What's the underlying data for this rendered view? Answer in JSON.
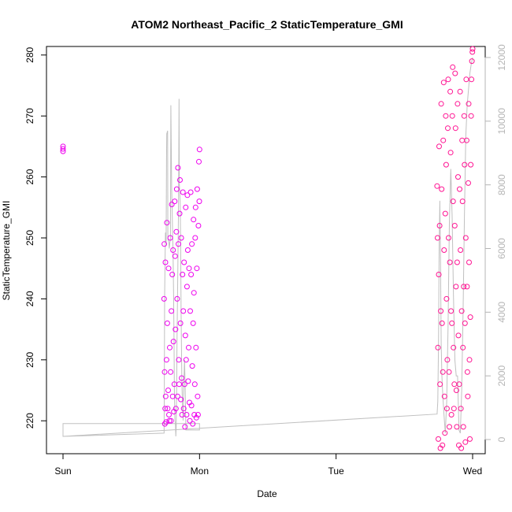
{
  "chart_data": {
    "type": "scatter",
    "title": "ATOM2 Northeast_Pacific_2 StaticTemperature_GMI",
    "xlabel": "Date",
    "ylabel": "StaticTemperature_GMI",
    "x_ticks": [
      "Sun",
      "Mon",
      "Tue",
      "Wed"
    ],
    "x_tick_values_days": [
      0,
      1,
      2,
      3
    ],
    "xlim_days": [
      0,
      3
    ],
    "y_ticks": [
      220,
      230,
      240,
      250,
      260,
      270,
      280
    ],
    "ylim": [
      214.6,
      281.4
    ],
    "y2_ticks": [
      "0",
      "2000",
      "4000",
      "6000",
      "8000",
      "10000",
      "12000"
    ],
    "y2_tick_values": [
      0,
      2000,
      4000,
      6000,
      8000,
      10000,
      12000
    ],
    "y2lim": [
      0,
      12000
    ],
    "grid": false,
    "legend": "none",
    "colors": {
      "temperature_early": "#ee00ee",
      "temperature_late": "#ff1493",
      "altitude_line": "#c0c0c0",
      "axis": "#000000",
      "right_axis": "#b5b5b5"
    },
    "series": [
      {
        "marker": "open-circle",
        "segments": [
          {
            "color": "#ee00ee",
            "x": [
              0.0,
              0.0,
              0.0
            ],
            "y": [
              264.2,
              264.6,
              265.0
            ]
          },
          {
            "color": "#ee00ee",
            "x": [
              0.74,
              0.742,
              0.744,
              0.746,
              0.748,
              0.75,
              0.752,
              0.755,
              0.758,
              0.761,
              0.764,
              0.767,
              0.77,
              0.773,
              0.776,
              0.779,
              0.782,
              0.785,
              0.788,
              0.791,
              0.794,
              0.797,
              0.8,
              0.803,
              0.806,
              0.809,
              0.812,
              0.815,
              0.818,
              0.821,
              0.824,
              0.827,
              0.83,
              0.833,
              0.836,
              0.839,
              0.842,
              0.845,
              0.848,
              0.851,
              0.854,
              0.857,
              0.86,
              0.863,
              0.866,
              0.869,
              0.872,
              0.875,
              0.878,
              0.881,
              0.884,
              0.887,
              0.89,
              0.893,
              0.896,
              0.899,
              0.902,
              0.905,
              0.908,
              0.911,
              0.914,
              0.917,
              0.92,
              0.923,
              0.926,
              0.929,
              0.932,
              0.935,
              0.938,
              0.941,
              0.944,
              0.947,
              0.95,
              0.953,
              0.956,
              0.959,
              0.962,
              0.965,
              0.968,
              0.971,
              0.974,
              0.977,
              0.98,
              0.983,
              0.986,
              0.989,
              0.992,
              0.995,
              0.998,
              1.0
            ],
            "y": [
              240.0,
              249.0,
              228.0,
              219.5,
              222.0,
              246.0,
              224.0,
              219.8,
              230.0,
              252.5,
              236.0,
              222.0,
              225.0,
              245.0,
              221.0,
              220.0,
              232.0,
              250.0,
              228.0,
              220.0,
              238.0,
              255.5,
              244.0,
              224.0,
              248.0,
              233.0,
              221.5,
              226.0,
              256.0,
              247.0,
              235.0,
              222.0,
              251.0,
              258.0,
              240.0,
              224.0,
              261.5,
              249.0,
              230.0,
              226.0,
              254.0,
              259.5,
              236.0,
              223.5,
              250.0,
              227.0,
              221.0,
              244.0,
              257.5,
              238.0,
              222.0,
              246.0,
              226.0,
              219.0,
              234.0,
              255.0,
              230.0,
              221.0,
              242.0,
              257.0,
              248.0,
              226.5,
              232.0,
              245.0,
              223.0,
              220.0,
              238.0,
              257.5,
              244.0,
              222.5,
              249.0,
              229.0,
              219.5,
              236.0,
              253.0,
              241.0,
              221.0,
              226.0,
              250.0,
              255.0,
              232.0,
              220.5,
              245.0,
              258.0,
              224.0,
              221.0,
              252.0,
              262.5,
              256.0,
              264.5
            ]
          },
          {
            "color": "#ff1493",
            "x": [
              2.74,
              2.743,
              2.746,
              2.749,
              2.752,
              2.755,
              2.758,
              2.761,
              2.764,
              2.767,
              2.77,
              2.773,
              2.776,
              2.779,
              2.782,
              2.785,
              2.788,
              2.791,
              2.794,
              2.797,
              2.8,
              2.803,
              2.806,
              2.809,
              2.812,
              2.815,
              2.818,
              2.821,
              2.824,
              2.827,
              2.83,
              2.833,
              2.836,
              2.839,
              2.842,
              2.845,
              2.848,
              2.851,
              2.854,
              2.857,
              2.86,
              2.863,
              2.866,
              2.869,
              2.872,
              2.875,
              2.878,
              2.881,
              2.884,
              2.887,
              2.89,
              2.893,
              2.896,
              2.899,
              2.902,
              2.905,
              2.908,
              2.911,
              2.914,
              2.917,
              2.92,
              2.923,
              2.926,
              2.929,
              2.932,
              2.935,
              2.938,
              2.941,
              2.944,
              2.947,
              2.95,
              2.953,
              2.956,
              2.959,
              2.962,
              2.965,
              2.968,
              2.971,
              2.974,
              2.977,
              2.98,
              2.983,
              2.986,
              2.989,
              2.992,
              2.995,
              2.998,
              3.0
            ],
            "y": [
              258.5,
              250.0,
              232.0,
              217.0,
              244.0,
              265.0,
              252.0,
              226.0,
              215.5,
              238.0,
              272.0,
              258.0,
              236.0,
              216.0,
              228.0,
              266.0,
              275.5,
              248.0,
              224.0,
              218.0,
              254.0,
              270.0,
              262.0,
              240.0,
              222.0,
              230.0,
              268.0,
              276.0,
              250.0,
              228.0,
              219.0,
              246.0,
              274.0,
              264.0,
              238.0,
              221.0,
              236.0,
              270.0,
              278.0,
              256.0,
              232.0,
              222.0,
              226.0,
              252.0,
              277.0,
              268.0,
              242.0,
              225.0,
              219.0,
              246.0,
              272.0,
              260.0,
              234.0,
              216.0,
              226.0,
              258.0,
              274.0,
              248.0,
              222.0,
              215.5,
              238.0,
              266.0,
              256.0,
              232.0,
              219.0,
              242.0,
              270.0,
              262.0,
              236.0,
              216.5,
              250.0,
              276.0,
              266.0,
              242.0,
              228.0,
              224.0,
              259.0,
              272.0,
              246.0,
              230.0,
              217.0,
              237.0,
              262.0,
              270.0,
              276.0,
              279.0,
              280.5,
              281.0
            ]
          }
        ]
      },
      {
        "axis": "right",
        "style": "line",
        "color": "#c0c0c0",
        "x": [
          0.0,
          0.0,
          0.74,
          0.742,
          0.744,
          0.75,
          0.755,
          0.758,
          0.76,
          0.766,
          0.768,
          0.775,
          0.778,
          0.783,
          0.787,
          0.79,
          0.796,
          0.8,
          0.803,
          0.806,
          0.81,
          0.813,
          0.816,
          0.82,
          0.823,
          0.826,
          0.829,
          0.832,
          0.835,
          0.84,
          0.845,
          0.848,
          0.85,
          0.852,
          0.858,
          0.862,
          0.865,
          0.87,
          0.875,
          0.88,
          0.885,
          0.89,
          0.895,
          0.9,
          0.91,
          0.92,
          0.93,
          0.94,
          0.95,
          0.96,
          0.97,
          1.0,
          1.0,
          0.0,
          0.0,
          2.74,
          2.745,
          2.75,
          2.755,
          2.76,
          2.765,
          2.77,
          2.775,
          2.78,
          2.79,
          2.8,
          2.81,
          2.82,
          2.83,
          2.84,
          2.85,
          2.86,
          2.87,
          2.88,
          2.89,
          2.9,
          2.91,
          2.92,
          2.93,
          2.94,
          2.95,
          2.96,
          2.97,
          2.98,
          2.99,
          3.0
        ],
        "y": [
          100,
          100,
          200,
          1500,
          4500,
          6500,
          6200,
          8800,
          9600,
          9700,
          6300,
          6200,
          6000,
          6200,
          6300,
          10500,
          7800,
          7000,
          6400,
          5900,
          4500,
          3200,
          1500,
          600,
          500,
          100,
          400,
          1500,
          3000,
          5000,
          7000,
          9000,
          10700,
          8000,
          7500,
          6000,
          4000,
          2000,
          1000,
          600,
          1800,
          2500,
          1600,
          300,
          300,
          300,
          300,
          300,
          300,
          300,
          300,
          300,
          500,
          500,
          100,
          800,
          1200,
          3000,
          6000,
          7500,
          5500,
          3000,
          2000,
          1500,
          800,
          200,
          1200,
          3500,
          6800,
          8500,
          7000,
          4500,
          2500,
          2000,
          2000,
          300,
          200,
          1500,
          4000,
          7000,
          9500,
          10500,
          11000,
          11500,
          11800,
          12000
        ]
      }
    ]
  }
}
